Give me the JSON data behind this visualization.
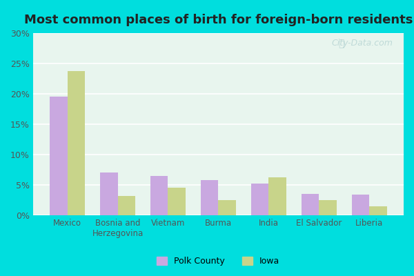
{
  "title": "Most common places of birth for foreign-born residents",
  "categories": [
    "Mexico",
    "Bosnia and\nHerzegovina",
    "Vietnam",
    "Burma",
    "India",
    "El Salvador",
    "Liberia"
  ],
  "polk_county": [
    19.5,
    7.0,
    6.5,
    5.8,
    5.2,
    3.5,
    3.4
  ],
  "iowa": [
    23.8,
    3.2,
    4.5,
    2.5,
    6.3,
    2.5,
    1.5
  ],
  "polk_color": "#c9a8e0",
  "iowa_color": "#c8d48a",
  "bg_outer": "#00dede",
  "bg_plot": "#e8f5ee",
  "ylim": [
    0,
    30
  ],
  "yticks": [
    0,
    5,
    10,
    15,
    20,
    25,
    30
  ],
  "ytick_labels": [
    "0%",
    "5%",
    "10%",
    "15%",
    "20%",
    "25%",
    "30%"
  ],
  "legend_polk": "Polk County",
  "legend_iowa": "Iowa",
  "watermark": "City-Data.com",
  "bar_width": 0.35
}
